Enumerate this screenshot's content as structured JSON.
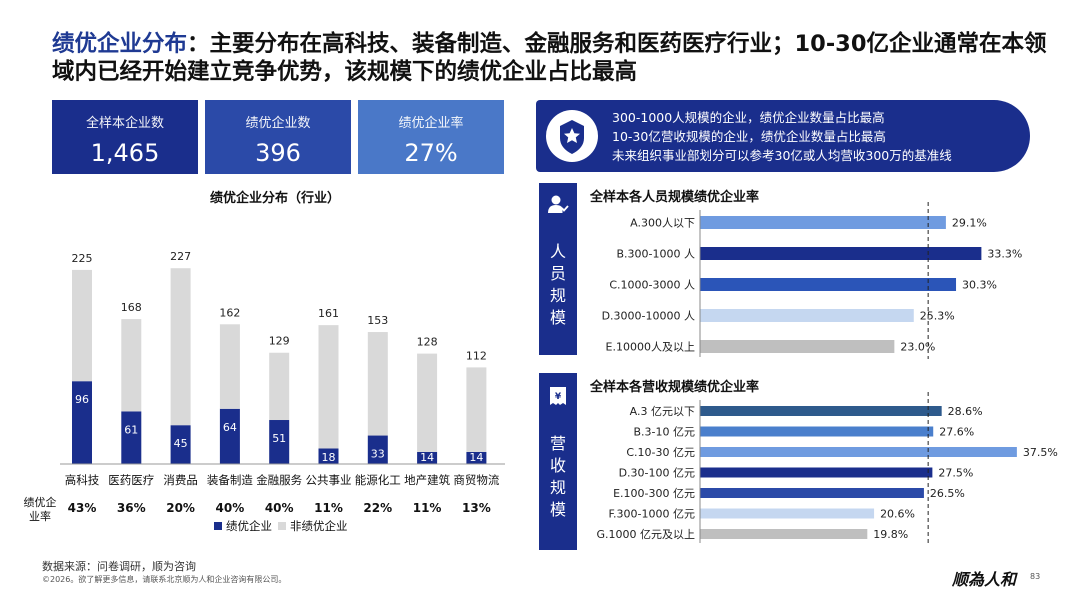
{
  "title": {
    "highlight": "绩优企业分布",
    "rest": "：主要分布在高科技、装备制造、金融服务和医药医疗行业；10-30亿企业通常在本领域内已经开始建立竞争优势，该规模下的绩优企业占比最高"
  },
  "kpis": [
    {
      "label": "全样本企业数",
      "value": "1,465",
      "color": "#1a2e8c"
    },
    {
      "label": "绩优企业数",
      "value": "396",
      "color": "#2b4aa8"
    },
    {
      "label": "绩优企业率",
      "value": "27%",
      "color": "#4a78c8"
    }
  ],
  "banner": {
    "lines": [
      "300-1000人规模的企业，绩优企业数量占比最高",
      "10-30亿营收规模的企业，绩优企业数量占比最高",
      "未来组织事业部划分可以参考30亿或人均营收300万的基准线"
    ]
  },
  "side_labels": {
    "staff": "人员规模",
    "revenue": "营收规模"
  },
  "rate_row_label": "绩优企\n业率",
  "footer": {
    "source": "数据来源：问卷调研，顺为咨询",
    "copyright": "©2026。欲了解更多信息，请联系北京顺为人和企业咨询有限公司。",
    "logo": "顺為人和",
    "page": "83"
  },
  "colors": {
    "navy": "#1a2e8c",
    "mid": "#2b4aa8",
    "light": "#d9d9d9"
  },
  "chart_data": [
    {
      "type": "bar",
      "title": "绩优企业分布（行业）",
      "categories": [
        "高科技",
        "医药医疗",
        "消费品",
        "装备制造",
        "金融服务",
        "公共事业",
        "能源化工",
        "地产建筑",
        "商贸物流"
      ],
      "series": [
        {
          "name": "绩优企业",
          "values": [
            96,
            61,
            45,
            64,
            51,
            18,
            33,
            14,
            14
          ]
        },
        {
          "name": "非绩优企业",
          "values": [
            129,
            107,
            182,
            98,
            78,
            143,
            120,
            114,
            98
          ]
        }
      ],
      "totals": [
        225,
        168,
        227,
        162,
        129,
        161,
        153,
        128,
        112
      ],
      "rates": [
        "43%",
        "36%",
        "20%",
        "40%",
        "40%",
        "11%",
        "22%",
        "11%",
        "13%"
      ],
      "stacked": true,
      "legend": "bottom",
      "ylim": [
        0,
        240
      ]
    },
    {
      "type": "bar",
      "orientation": "horizontal",
      "title": "全样本各人员规模绩优企业率",
      "categories": [
        "A.300人以下",
        "B.300-1000 人",
        "C.1000-3000 人",
        "D.3000-10000 人",
        "E.10000人及以上"
      ],
      "values": [
        29.1,
        33.3,
        30.3,
        25.3,
        23.0
      ],
      "labels": [
        "29.1%",
        "33.3%",
        "30.3%",
        "25.3%",
        "23.0%"
      ],
      "colors": [
        "#6f9be0",
        "#1a2e8c",
        "#2b55b8",
        "#c5d7f0",
        "#bfbfbf"
      ],
      "reference_line": 27,
      "xlim": [
        0,
        40
      ]
    },
    {
      "type": "bar",
      "orientation": "horizontal",
      "title": "全样本各营收规模绩优企业率",
      "categories": [
        "A.3 亿元以下",
        "B.3-10 亿元",
        "C.10-30 亿元",
        "D.30-100 亿元",
        "E.100-300 亿元",
        "F.300-1000 亿元",
        "G.1000 亿元及以上"
      ],
      "values": [
        28.6,
        27.6,
        37.5,
        27.5,
        26.5,
        20.6,
        19.8
      ],
      "labels": [
        "28.6%",
        "27.6%",
        "37.5%",
        "27.5%",
        "26.5%",
        "20.6%",
        "19.8%"
      ],
      "colors": [
        "#2e5a8c",
        "#4a7fcc",
        "#6f9be0",
        "#1a2e8c",
        "#2b4aa8",
        "#c5d7f0",
        "#bfbfbf"
      ],
      "reference_line": 27,
      "xlim": [
        0,
        40
      ]
    }
  ]
}
